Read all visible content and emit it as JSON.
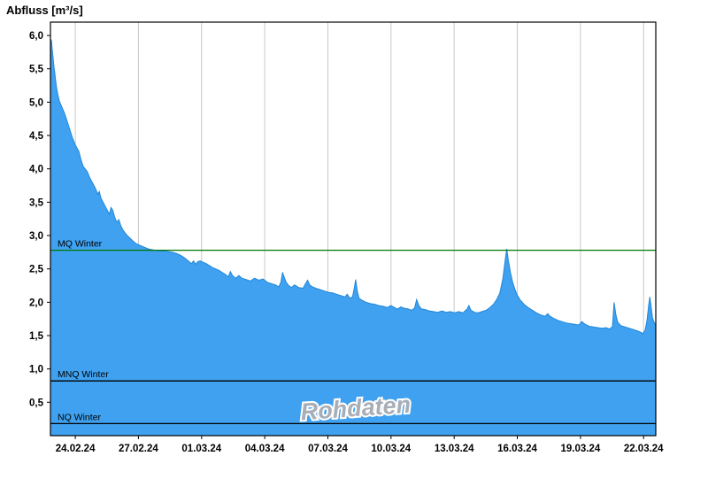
{
  "title": "Abfluss [m³/s]",
  "watermark": "Rohdaten",
  "colors": {
    "area_fill": "#3fa1ef",
    "area_edge": "#2287d8",
    "grid": "#c8c8c8",
    "axis": "#000000",
    "mq_line": "#007700",
    "threshold_line": "#000000",
    "watermark_fill": "#a9aeb6",
    "watermark_halo": "#ffffff",
    "label": "#000000"
  },
  "chart_data": {
    "type": "area",
    "title": "Abfluss [m³/s]",
    "xlabel": "",
    "ylabel": "Abfluss [m³/s]",
    "unit": "m³/s",
    "grid": "vertical-only",
    "legend": "none",
    "xlim": [
      0,
      28.76
    ],
    "ylim": [
      0,
      6.2
    ],
    "y_ticks": [
      {
        "v": 0.5,
        "label": "0,5"
      },
      {
        "v": 1.0,
        "label": "1,0"
      },
      {
        "v": 1.5,
        "label": "1,5"
      },
      {
        "v": 2.0,
        "label": "2,0"
      },
      {
        "v": 2.5,
        "label": "2,5"
      },
      {
        "v": 3.0,
        "label": "3,0"
      },
      {
        "v": 3.5,
        "label": "3,5"
      },
      {
        "v": 4.0,
        "label": "4,0"
      },
      {
        "v": 4.5,
        "label": "4,5"
      },
      {
        "v": 5.0,
        "label": "5,0"
      },
      {
        "v": 5.5,
        "label": "5,5"
      },
      {
        "v": 6.0,
        "label": "6,0"
      }
    ],
    "x_ticks": [
      {
        "v": 1.18,
        "label": "24.02.24"
      },
      {
        "v": 4.18,
        "label": "27.02.24"
      },
      {
        "v": 7.18,
        "label": "01.03.24"
      },
      {
        "v": 10.18,
        "label": "04.03.24"
      },
      {
        "v": 13.18,
        "label": "07.03.24"
      },
      {
        "v": 16.18,
        "label": "10.03.24"
      },
      {
        "v": 19.18,
        "label": "13.03.24"
      },
      {
        "v": 22.18,
        "label": "16.03.24"
      },
      {
        "v": 25.18,
        "label": "19.03.24"
      },
      {
        "v": 28.18,
        "label": "22.03.24"
      }
    ],
    "reference_lines": [
      {
        "label": "MQ Winter",
        "value": 2.78,
        "color": "#007700"
      },
      {
        "label": "MNQ Winter",
        "value": 0.82,
        "color": "#000000"
      },
      {
        "label": "NQ Winter",
        "value": 0.18,
        "color": "#000000"
      }
    ],
    "series": [
      {
        "name": "Rohdaten",
        "points": [
          [
            0.0,
            5.95
          ],
          [
            0.05,
            5.92
          ],
          [
            0.08,
            5.8
          ],
          [
            0.12,
            5.68
          ],
          [
            0.16,
            5.55
          ],
          [
            0.2,
            5.45
          ],
          [
            0.25,
            5.32
          ],
          [
            0.3,
            5.2
          ],
          [
            0.36,
            5.1
          ],
          [
            0.42,
            5.02
          ],
          [
            0.5,
            4.96
          ],
          [
            0.58,
            4.9
          ],
          [
            0.66,
            4.84
          ],
          [
            0.75,
            4.76
          ],
          [
            0.85,
            4.66
          ],
          [
            0.95,
            4.56
          ],
          [
            1.05,
            4.46
          ],
          [
            1.15,
            4.38
          ],
          [
            1.25,
            4.32
          ],
          [
            1.35,
            4.26
          ],
          [
            1.45,
            4.14
          ],
          [
            1.55,
            4.04
          ],
          [
            1.65,
            4.0
          ],
          [
            1.75,
            3.96
          ],
          [
            1.85,
            3.88
          ],
          [
            1.95,
            3.82
          ],
          [
            2.05,
            3.76
          ],
          [
            2.15,
            3.7
          ],
          [
            2.25,
            3.62
          ],
          [
            2.32,
            3.66
          ],
          [
            2.4,
            3.56
          ],
          [
            2.5,
            3.5
          ],
          [
            2.6,
            3.44
          ],
          [
            2.7,
            3.38
          ],
          [
            2.8,
            3.32
          ],
          [
            2.88,
            3.42
          ],
          [
            2.96,
            3.38
          ],
          [
            3.05,
            3.28
          ],
          [
            3.15,
            3.2
          ],
          [
            3.25,
            3.24
          ],
          [
            3.35,
            3.14
          ],
          [
            3.45,
            3.08
          ],
          [
            3.55,
            3.04
          ],
          [
            3.65,
            3.0
          ],
          [
            3.78,
            2.96
          ],
          [
            3.92,
            2.92
          ],
          [
            4.06,
            2.88
          ],
          [
            4.2,
            2.86
          ],
          [
            4.35,
            2.84
          ],
          [
            4.5,
            2.82
          ],
          [
            4.65,
            2.8
          ],
          [
            4.8,
            2.79
          ],
          [
            5.0,
            2.78
          ],
          [
            5.2,
            2.77
          ],
          [
            5.4,
            2.77
          ],
          [
            5.6,
            2.76
          ],
          [
            5.8,
            2.75
          ],
          [
            6.0,
            2.73
          ],
          [
            6.2,
            2.7
          ],
          [
            6.4,
            2.66
          ],
          [
            6.55,
            2.62
          ],
          [
            6.7,
            2.58
          ],
          [
            6.8,
            2.62
          ],
          [
            6.9,
            2.57
          ],
          [
            7.0,
            2.61
          ],
          [
            7.12,
            2.62
          ],
          [
            7.25,
            2.6
          ],
          [
            7.4,
            2.58
          ],
          [
            7.55,
            2.55
          ],
          [
            7.7,
            2.52
          ],
          [
            7.85,
            2.5
          ],
          [
            8.0,
            2.48
          ],
          [
            8.15,
            2.45
          ],
          [
            8.3,
            2.42
          ],
          [
            8.45,
            2.38
          ],
          [
            8.55,
            2.46
          ],
          [
            8.65,
            2.4
          ],
          [
            8.8,
            2.36
          ],
          [
            8.95,
            2.4
          ],
          [
            9.1,
            2.36
          ],
          [
            9.3,
            2.34
          ],
          [
            9.5,
            2.32
          ],
          [
            9.7,
            2.36
          ],
          [
            9.9,
            2.33
          ],
          [
            10.1,
            2.35
          ],
          [
            10.3,
            2.3
          ],
          [
            10.5,
            2.28
          ],
          [
            10.7,
            2.26
          ],
          [
            10.85,
            2.23
          ],
          [
            10.95,
            2.3
          ],
          [
            11.03,
            2.45
          ],
          [
            11.1,
            2.38
          ],
          [
            11.2,
            2.3
          ],
          [
            11.32,
            2.25
          ],
          [
            11.45,
            2.22
          ],
          [
            11.6,
            2.26
          ],
          [
            11.8,
            2.22
          ],
          [
            12.0,
            2.21
          ],
          [
            12.12,
            2.28
          ],
          [
            12.22,
            2.33
          ],
          [
            12.32,
            2.26
          ],
          [
            12.45,
            2.23
          ],
          [
            12.6,
            2.21
          ],
          [
            12.8,
            2.19
          ],
          [
            13.0,
            2.17
          ],
          [
            13.2,
            2.15
          ],
          [
            13.4,
            2.14
          ],
          [
            13.6,
            2.12
          ],
          [
            13.8,
            2.1
          ],
          [
            14.0,
            2.08
          ],
          [
            14.1,
            2.12
          ],
          [
            14.22,
            2.06
          ],
          [
            14.35,
            2.08
          ],
          [
            14.44,
            2.22
          ],
          [
            14.5,
            2.34
          ],
          [
            14.58,
            2.16
          ],
          [
            14.66,
            2.06
          ],
          [
            14.8,
            2.03
          ],
          [
            15.0,
            2.0
          ],
          [
            15.2,
            1.98
          ],
          [
            15.4,
            1.97
          ],
          [
            15.6,
            1.95
          ],
          [
            15.8,
            1.94
          ],
          [
            16.0,
            1.92
          ],
          [
            16.18,
            1.95
          ],
          [
            16.35,
            1.92
          ],
          [
            16.5,
            1.9
          ],
          [
            16.65,
            1.93
          ],
          [
            16.8,
            1.91
          ],
          [
            17.0,
            1.9
          ],
          [
            17.15,
            1.88
          ],
          [
            17.3,
            1.91
          ],
          [
            17.4,
            2.04
          ],
          [
            17.5,
            1.95
          ],
          [
            17.62,
            1.9
          ],
          [
            17.8,
            1.89
          ],
          [
            18.0,
            1.87
          ],
          [
            18.2,
            1.86
          ],
          [
            18.4,
            1.85
          ],
          [
            18.6,
            1.87
          ],
          [
            18.8,
            1.85
          ],
          [
            19.0,
            1.86
          ],
          [
            19.2,
            1.84
          ],
          [
            19.4,
            1.86
          ],
          [
            19.6,
            1.84
          ],
          [
            19.8,
            1.9
          ],
          [
            19.88,
            1.95
          ],
          [
            19.98,
            1.88
          ],
          [
            20.15,
            1.85
          ],
          [
            20.3,
            1.84
          ],
          [
            20.5,
            1.86
          ],
          [
            20.7,
            1.88
          ],
          [
            20.88,
            1.92
          ],
          [
            21.05,
            1.97
          ],
          [
            21.2,
            2.04
          ],
          [
            21.35,
            2.14
          ],
          [
            21.5,
            2.36
          ],
          [
            21.6,
            2.62
          ],
          [
            21.68,
            2.8
          ],
          [
            21.76,
            2.62
          ],
          [
            21.86,
            2.44
          ],
          [
            21.96,
            2.3
          ],
          [
            22.06,
            2.2
          ],
          [
            22.16,
            2.12
          ],
          [
            22.3,
            2.04
          ],
          [
            22.5,
            1.97
          ],
          [
            22.7,
            1.92
          ],
          [
            22.9,
            1.88
          ],
          [
            23.1,
            1.84
          ],
          [
            23.3,
            1.81
          ],
          [
            23.5,
            1.79
          ],
          [
            23.62,
            1.83
          ],
          [
            23.74,
            1.79
          ],
          [
            23.9,
            1.76
          ],
          [
            24.1,
            1.73
          ],
          [
            24.3,
            1.71
          ],
          [
            24.5,
            1.69
          ],
          [
            24.7,
            1.68
          ],
          [
            24.9,
            1.67
          ],
          [
            25.1,
            1.66
          ],
          [
            25.25,
            1.71
          ],
          [
            25.4,
            1.67
          ],
          [
            25.6,
            1.64
          ],
          [
            25.8,
            1.63
          ],
          [
            26.0,
            1.62
          ],
          [
            26.2,
            1.61
          ],
          [
            26.4,
            1.62
          ],
          [
            26.55,
            1.6
          ],
          [
            26.7,
            1.63
          ],
          [
            26.78,
            2.0
          ],
          [
            26.86,
            1.82
          ],
          [
            26.95,
            1.7
          ],
          [
            27.1,
            1.65
          ],
          [
            27.3,
            1.63
          ],
          [
            27.5,
            1.61
          ],
          [
            27.7,
            1.59
          ],
          [
            27.9,
            1.57
          ],
          [
            28.05,
            1.55
          ],
          [
            28.15,
            1.53
          ],
          [
            28.25,
            1.58
          ],
          [
            28.34,
            1.72
          ],
          [
            28.42,
            1.95
          ],
          [
            28.48,
            2.08
          ],
          [
            28.54,
            1.93
          ],
          [
            28.6,
            1.77
          ],
          [
            28.68,
            1.7
          ],
          [
            28.76,
            1.66
          ]
        ]
      }
    ]
  }
}
